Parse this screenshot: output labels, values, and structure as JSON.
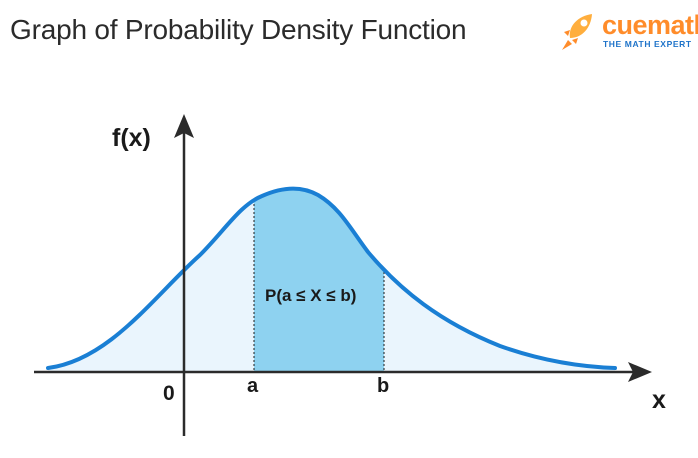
{
  "header": {
    "title": "Graph of Probability Density Function"
  },
  "logo": {
    "wordmark": "cuemath",
    "tagline": "THE MATH EXPERT",
    "icon": "rocket-icon",
    "colors": {
      "word": "#ff8c2a",
      "tagline": "#1e73c9",
      "rocket": "#ffae3d"
    }
  },
  "diagram": {
    "y_axis_label": "f(x)",
    "x_axis_label": "x",
    "origin_label": "0",
    "point_a_label": "a",
    "point_b_label": "b",
    "region_label": "P(a ≤ X ≤ b)",
    "colors": {
      "curve": "#1a7fd4",
      "light_fill": "#eaf5fd",
      "shaded_region": "#8ed2f0",
      "axes": "#2b2b2b"
    }
  }
}
